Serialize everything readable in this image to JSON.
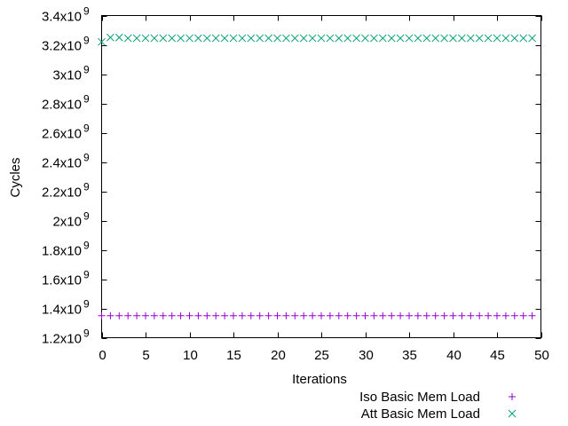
{
  "chart_data": {
    "type": "scatter",
    "title": "",
    "xlabel": "Iterations",
    "ylabel": "Cycles",
    "xlim": [
      0,
      50
    ],
    "ylim": [
      1200000000,
      3400000000
    ],
    "x_ticks": [
      {
        "value": 0,
        "label": "0"
      },
      {
        "value": 5,
        "label": "5"
      },
      {
        "value": 10,
        "label": "10"
      },
      {
        "value": 15,
        "label": "15"
      },
      {
        "value": 20,
        "label": "20"
      },
      {
        "value": 25,
        "label": "25"
      },
      {
        "value": 30,
        "label": "30"
      },
      {
        "value": 35,
        "label": "35"
      },
      {
        "value": 40,
        "label": "40"
      },
      {
        "value": 45,
        "label": "45"
      },
      {
        "value": 50,
        "label": "50"
      }
    ],
    "y_ticks": [
      {
        "value": 1200000000,
        "mantissa": "1.2x10",
        "exp": "9"
      },
      {
        "value": 1400000000,
        "mantissa": "1.4x10",
        "exp": "9"
      },
      {
        "value": 1600000000,
        "mantissa": "1.6x10",
        "exp": "9"
      },
      {
        "value": 1800000000,
        "mantissa": "1.8x10",
        "exp": "9"
      },
      {
        "value": 2000000000,
        "mantissa": "2x10",
        "exp": "9"
      },
      {
        "value": 2200000000,
        "mantissa": "2.2x10",
        "exp": "9"
      },
      {
        "value": 2400000000,
        "mantissa": "2.4x10",
        "exp": "9"
      },
      {
        "value": 2600000000,
        "mantissa": "2.6x10",
        "exp": "9"
      },
      {
        "value": 2800000000,
        "mantissa": "2.8x10",
        "exp": "9"
      },
      {
        "value": 3000000000,
        "mantissa": "3x10",
        "exp": "9"
      },
      {
        "value": 3200000000,
        "mantissa": "3.2x10",
        "exp": "9"
      },
      {
        "value": 3400000000,
        "mantissa": "3.4x10",
        "exp": "9"
      }
    ],
    "grid": false,
    "legend_position": "bottom-right, below plot",
    "series": [
      {
        "name": "Iso Basic Mem Load",
        "marker": "plus",
        "color": "#9400d3",
        "x": [
          0,
          1,
          2,
          3,
          4,
          5,
          6,
          7,
          8,
          9,
          10,
          11,
          12,
          13,
          14,
          15,
          16,
          17,
          18,
          19,
          20,
          21,
          22,
          23,
          24,
          25,
          26,
          27,
          28,
          29,
          30,
          31,
          32,
          33,
          34,
          35,
          36,
          37,
          38,
          39,
          40,
          41,
          42,
          43,
          44,
          45,
          46,
          47,
          48,
          49
        ],
        "y": [
          1350000000,
          1350000000,
          1350000000,
          1350000000,
          1350000000,
          1350000000,
          1350000000,
          1350000000,
          1350000000,
          1350000000,
          1350000000,
          1350000000,
          1350000000,
          1350000000,
          1350000000,
          1350000000,
          1350000000,
          1350000000,
          1350000000,
          1350000000,
          1350000000,
          1350000000,
          1350000000,
          1350000000,
          1350000000,
          1350000000,
          1350000000,
          1350000000,
          1350000000,
          1350000000,
          1350000000,
          1350000000,
          1350000000,
          1350000000,
          1350000000,
          1350000000,
          1350000000,
          1350000000,
          1350000000,
          1350000000,
          1350000000,
          1350000000,
          1350000000,
          1350000000,
          1350000000,
          1350000000,
          1350000000,
          1350000000,
          1350000000,
          1350000000
        ]
      },
      {
        "name": "Att Basic Mem Load",
        "marker": "cross",
        "color": "#009e73",
        "x": [
          0,
          1,
          2,
          3,
          4,
          5,
          6,
          7,
          8,
          9,
          10,
          11,
          12,
          13,
          14,
          15,
          16,
          17,
          18,
          19,
          20,
          21,
          22,
          23,
          24,
          25,
          26,
          27,
          28,
          29,
          30,
          31,
          32,
          33,
          34,
          35,
          36,
          37,
          38,
          39,
          40,
          41,
          42,
          43,
          44,
          45,
          46,
          47,
          48,
          49
        ],
        "y": [
          3220000000,
          3250000000,
          3250000000,
          3245000000,
          3245000000,
          3245000000,
          3245000000,
          3245000000,
          3245000000,
          3245000000,
          3245000000,
          3245000000,
          3245000000,
          3245000000,
          3245000000,
          3245000000,
          3245000000,
          3245000000,
          3245000000,
          3245000000,
          3245000000,
          3245000000,
          3245000000,
          3245000000,
          3245000000,
          3245000000,
          3245000000,
          3245000000,
          3245000000,
          3245000000,
          3245000000,
          3245000000,
          3245000000,
          3245000000,
          3245000000,
          3245000000,
          3245000000,
          3245000000,
          3245000000,
          3245000000,
          3245000000,
          3245000000,
          3245000000,
          3245000000,
          3245000000,
          3245000000,
          3245000000,
          3245000000,
          3245000000,
          3245000000
        ]
      }
    ]
  }
}
